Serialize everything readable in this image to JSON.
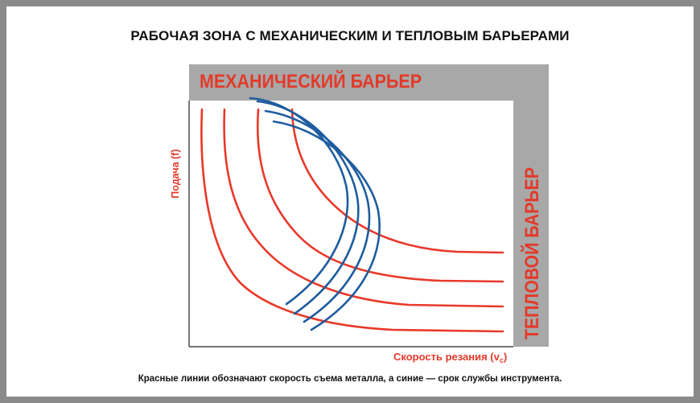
{
  "title": "РАБОЧАЯ ЗОНА С МЕХАНИЧЕСКИМ И ТЕПЛОВЫМ БАРЬЕРАМИ",
  "barriers": {
    "mechanical": "МЕХАНИЧЕСКИЙ БАРЬЕР",
    "thermal": "ТЕПЛОВОЙ БАРЬЕР"
  },
  "axes": {
    "y_label": "Подача (f)",
    "x_label_main": "Скорость резания (v",
    "x_label_sub": "c",
    "x_label_close": ")"
  },
  "caption": "Красные линии обозначают скорость съема металла, а синие  — срок службы инструмента.",
  "colors": {
    "red_curves": "#e8392a",
    "blue_curves": "#1e5c9e",
    "barrier_fill": "#a8a8a8",
    "label_red": "#e23a2a",
    "frame": "#8a8a8a"
  }
}
